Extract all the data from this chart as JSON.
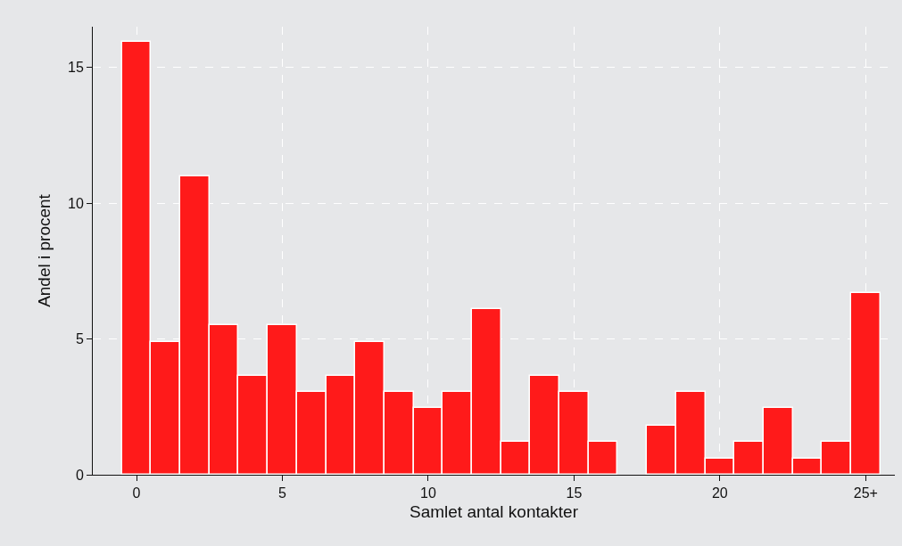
{
  "chart_data": {
    "type": "histogram",
    "xlabel": "Samlet antal kontakter",
    "ylabel": "Andel i procent",
    "bins": [
      -0.5,
      0.5,
      1.5,
      2.5,
      3.5,
      4.5,
      5.5,
      6.5,
      7.5,
      8.5,
      9.5,
      10.5,
      11.5,
      12.5,
      13.5,
      14.5,
      15.5,
      16.5,
      17.5,
      18.5,
      19.5,
      20.5,
      21.5,
      22.5,
      23.5,
      24.5,
      25.5
    ],
    "values": [
      15.95,
      4.9,
      11.0,
      5.5,
      3.65,
      5.5,
      3.05,
      3.65,
      4.9,
      3.05,
      2.45,
      3.05,
      6.1,
      1.2,
      3.65,
      3.05,
      1.2,
      0,
      1.8,
      3.05,
      0.6,
      1.2,
      2.45,
      0.6,
      1.2,
      6.7
    ],
    "color": "#ff1a1a",
    "xlim": [
      -1.5,
      26
    ],
    "xticks": [
      0,
      5,
      10,
      15,
      20,
      {
        "value": 25,
        "label": "25+"
      }
    ],
    "ylim": [
      0,
      16.5
    ],
    "yticks": [
      0,
      5,
      10,
      15
    ],
    "grid": true
  }
}
